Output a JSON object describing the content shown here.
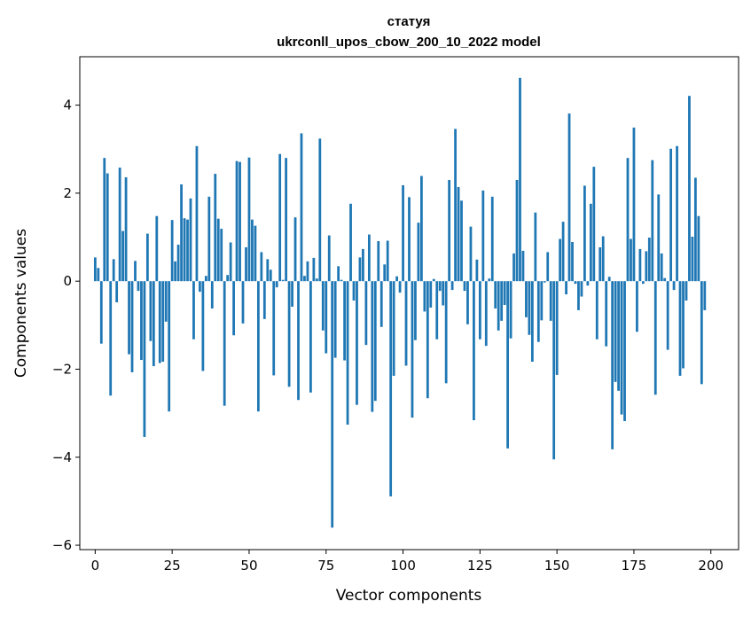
{
  "chart_data": {
    "type": "bar",
    "title": [
      "статуя",
      "ukrconll_upos_cbow_200_10_2022 model"
    ],
    "xlabel": "Vector components",
    "ylabel": "Components values",
    "xlim": [
      -5,
      209
    ],
    "ylim": [
      -6.1,
      5.1
    ],
    "xticks": [
      0,
      25,
      50,
      75,
      100,
      125,
      150,
      175,
      200
    ],
    "xtick_labels": [
      "0",
      "25",
      "50",
      "75",
      "100",
      "125",
      "150",
      "175",
      "200"
    ],
    "yticks": [
      -6,
      -4,
      -2,
      0,
      2,
      4
    ],
    "ytick_labels": [
      "−6",
      "−4",
      "−2",
      "0",
      "2",
      "4"
    ],
    "bar_color": "#1f77b4",
    "x": "0..199",
    "values": [
      0.54,
      0.3,
      -1.42,
      2.8,
      2.45,
      -2.6,
      0.5,
      -0.48,
      2.58,
      1.14,
      2.36,
      -1.66,
      -2.07,
      0.46,
      -0.22,
      -1.79,
      -3.54,
      1.08,
      -1.36,
      -1.93,
      1.48,
      -1.86,
      -1.83,
      -0.92,
      -2.96,
      1.39,
      0.45,
      0.83,
      2.2,
      1.43,
      1.4,
      1.88,
      -1.32,
      3.07,
      -0.24,
      -2.04,
      0.12,
      1.92,
      -0.62,
      2.44,
      1.42,
      1.19,
      -2.83,
      0.14,
      0.88,
      -1.23,
      2.73,
      2.71,
      -0.96,
      0.77,
      2.81,
      1.4,
      1.26,
      -2.96,
      0.66,
      -0.86,
      0.5,
      0.26,
      -2.14,
      -0.14,
      2.89,
      0.03,
      2.8,
      -2.4,
      -0.58,
      1.45,
      -2.7,
      3.36,
      0.12,
      0.45,
      -2.53,
      0.53,
      0.06,
      3.24,
      -1.12,
      -1.64,
      1.04,
      -5.6,
      -1.74,
      0.34,
      0.03,
      -1.8,
      -3.26,
      1.76,
      -0.44,
      -2.81,
      0.54,
      0.73,
      -1.45,
      1.06,
      -2.97,
      -2.72,
      0.91,
      -1.04,
      0.38,
      0.92,
      -4.89,
      -2.15,
      0.11,
      -0.26,
      2.18,
      -1.92,
      1.91,
      -3.1,
      -1.34,
      1.33,
      2.39,
      -0.69,
      -2.66,
      -0.6,
      0.05,
      -1.32,
      -0.22,
      -0.55,
      -2.32,
      2.3,
      -0.2,
      3.46,
      2.14,
      1.83,
      -0.22,
      -0.98,
      1.24,
      -3.16,
      0.49,
      -1.32,
      2.06,
      -1.47,
      0.06,
      1.92,
      -0.62,
      -1.12,
      -0.9,
      -0.54,
      -3.8,
      -1.3,
      0.63,
      2.3,
      4.62,
      0.69,
      -0.82,
      -1.22,
      -1.83,
      1.56,
      -1.38,
      -0.89,
      -0.03,
      0.66,
      -0.9,
      -4.05,
      -2.13,
      0.96,
      1.35,
      -0.3,
      3.81,
      0.89,
      -0.06,
      -0.66,
      -0.35,
      2.17,
      -0.1,
      1.76,
      2.6,
      -1.32,
      0.77,
      1.02,
      -1.48,
      0.1,
      -3.82,
      -2.29,
      -2.49,
      -3.03,
      -3.18,
      2.8,
      0.96,
      3.49,
      -1.15,
      0.73,
      -0.06,
      0.68,
      0.99,
      2.75,
      -2.58,
      1.97,
      0.63,
      0.07,
      -1.56,
      3.01,
      -0.2,
      3.07,
      -2.15,
      -1.98,
      -0.44,
      4.21,
      1.01,
      2.35,
      1.48,
      -2.34,
      -0.66,
      0.0
    ]
  }
}
